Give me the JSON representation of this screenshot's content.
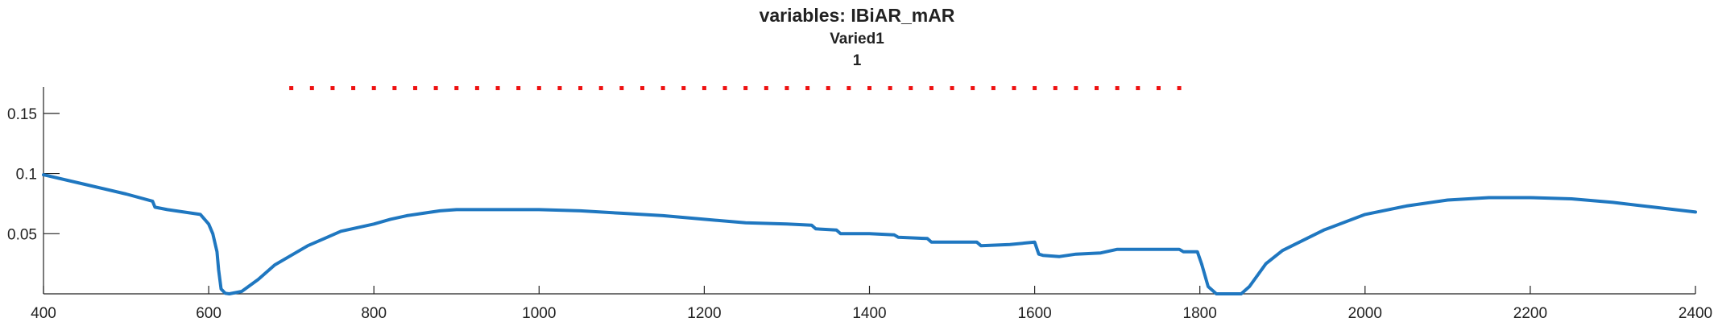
{
  "chart_data": {
    "type": "line",
    "title": "variables: IBiAR_mAR",
    "subtitle_lines": [
      "Varied1",
      "1"
    ],
    "xlabel": "",
    "ylabel": "",
    "xlim": [
      400,
      2400
    ],
    "ylim": [
      0,
      0.172
    ],
    "grid": false,
    "x_ticks": [
      400,
      600,
      800,
      1000,
      1200,
      1400,
      1600,
      1800,
      2000,
      2200,
      2400
    ],
    "x_tick_labels": [
      "400",
      "600",
      "800",
      "1000",
      "1200",
      "1400",
      "1600",
      "1800",
      "2000",
      "2200",
      "2400"
    ],
    "y_ticks": [
      0.05,
      0.1,
      0.15
    ],
    "y_tick_labels": [
      "0.05",
      "0.1",
      "0.15"
    ],
    "colors": {
      "line": "#1f77c0",
      "markers": "#ee1111",
      "axis": "#222222"
    },
    "series": [
      {
        "style": "line",
        "color": "#1f77c0",
        "x": [
          400,
          450,
          500,
          532,
          535,
          550,
          590,
          595,
          600,
          605,
          610,
          612,
          615,
          620,
          625,
          640,
          660,
          680,
          700,
          720,
          740,
          760,
          780,
          800,
          820,
          840,
          860,
          880,
          900,
          950,
          1000,
          1050,
          1100,
          1150,
          1200,
          1250,
          1300,
          1330,
          1335,
          1360,
          1365,
          1400,
          1430,
          1435,
          1470,
          1475,
          1500,
          1530,
          1535,
          1570,
          1600,
          1605,
          1610,
          1630,
          1650,
          1680,
          1700,
          1730,
          1750,
          1775,
          1780,
          1790,
          1797,
          1802,
          1810,
          1820,
          1850,
          1860,
          1880,
          1900,
          1950,
          2000,
          2050,
          2100,
          2150,
          2200,
          2250,
          2300,
          2350,
          2400
        ],
        "y": [
          0.099,
          0.091,
          0.083,
          0.077,
          0.072,
          0.07,
          0.066,
          0.062,
          0.058,
          0.05,
          0.035,
          0.02,
          0.004,
          0.0005,
          0.0,
          0.002,
          0.012,
          0.024,
          0.032,
          0.04,
          0.046,
          0.052,
          0.055,
          0.058,
          0.062,
          0.065,
          0.067,
          0.069,
          0.07,
          0.07,
          0.07,
          0.069,
          0.067,
          0.065,
          0.062,
          0.059,
          0.058,
          0.057,
          0.054,
          0.053,
          0.05,
          0.05,
          0.049,
          0.047,
          0.046,
          0.043,
          0.043,
          0.043,
          0.04,
          0.041,
          0.043,
          0.033,
          0.032,
          0.031,
          0.033,
          0.034,
          0.037,
          0.037,
          0.037,
          0.037,
          0.035,
          0.035,
          0.035,
          0.025,
          0.006,
          0.0,
          0.0,
          0.006,
          0.025,
          0.036,
          0.053,
          0.066,
          0.073,
          0.078,
          0.08,
          0.08,
          0.079,
          0.076,
          0.072,
          0.068
        ]
      },
      {
        "style": "dots",
        "color": "#ee1111",
        "x": [
          700,
          725,
          750,
          775,
          800,
          825,
          850,
          875,
          900,
          925,
          950,
          975,
          1000,
          1025,
          1050,
          1075,
          1100,
          1125,
          1150,
          1175,
          1200,
          1225,
          1250,
          1275,
          1300,
          1325,
          1350,
          1375,
          1400,
          1425,
          1450,
          1475,
          1500,
          1525,
          1550,
          1575,
          1600,
          1625,
          1650,
          1675,
          1700,
          1725,
          1750,
          1775
        ],
        "y": [
          0.171,
          0.171,
          0.171,
          0.171,
          0.171,
          0.171,
          0.171,
          0.171,
          0.171,
          0.171,
          0.171,
          0.171,
          0.171,
          0.171,
          0.171,
          0.171,
          0.171,
          0.171,
          0.171,
          0.171,
          0.171,
          0.171,
          0.171,
          0.171,
          0.171,
          0.171,
          0.171,
          0.171,
          0.171,
          0.171,
          0.171,
          0.171,
          0.171,
          0.171,
          0.171,
          0.171,
          0.171,
          0.171,
          0.171,
          0.171,
          0.171,
          0.171,
          0.171,
          0.171
        ]
      }
    ]
  }
}
